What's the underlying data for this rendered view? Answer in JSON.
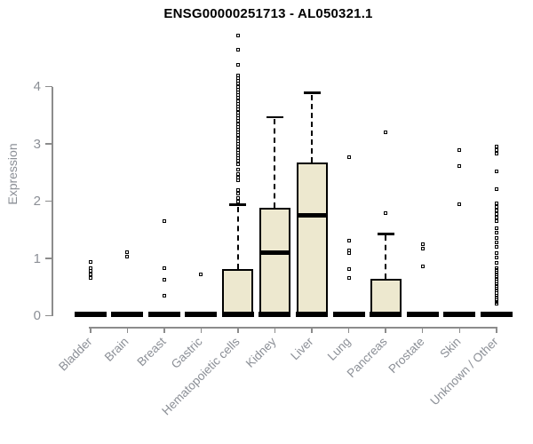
{
  "chart_data": {
    "type": "boxplot",
    "title": "ENSG00000251713 - AL050321.1",
    "ylabel": "Expression",
    "xlabel": "",
    "ylim": [
      0,
      4.95
    ],
    "yticks": [
      0,
      1,
      2,
      3,
      4
    ],
    "grid": false,
    "legend": "none",
    "colors": {
      "box_fill": "#ede8cf",
      "box_line": "#000000",
      "axis": "#8c8c8c",
      "tick_label": "#8b8f96",
      "title": "#000000",
      "background": "#ffffff"
    },
    "categories": [
      "Bladder",
      "Brain",
      "Breast",
      "Gastric",
      "Hematopoietic cells",
      "Kidney",
      "Liver",
      "Lung",
      "Pancreas",
      "Prostate",
      "Skin",
      "Unknown / Other"
    ],
    "series": [
      {
        "category": "Bladder",
        "q1": 0,
        "median": 0,
        "q3": 0,
        "whisker_low": 0,
        "whisker_high": 0,
        "outliers": [
          0.94,
          0.84,
          0.78,
          0.72,
          0.67
        ]
      },
      {
        "category": "Brain",
        "q1": 0,
        "median": 0,
        "q3": 0,
        "whisker_low": 0,
        "whisker_high": 0,
        "outliers": [
          1.11,
          1.04
        ]
      },
      {
        "category": "Breast",
        "q1": 0,
        "median": 0,
        "q3": 0,
        "whisker_low": 0,
        "whisker_high": 0,
        "outliers": [
          1.66,
          0.84,
          0.63,
          0.35
        ]
      },
      {
        "category": "Gastric",
        "q1": 0,
        "median": 0,
        "q3": 0,
        "whisker_low": 0,
        "whisker_high": 0,
        "outliers": [
          0.73
        ]
      },
      {
        "category": "Hematopoietic cells",
        "q1": 0,
        "median": 0.02,
        "q3": 0.81,
        "whisker_low": 0,
        "whisker_high": 1.94,
        "outliers": [
          4.89,
          4.64,
          4.38,
          4.2,
          4.15,
          4.1,
          4.05,
          4.0,
          3.95,
          3.9,
          3.85,
          3.8,
          3.75,
          3.7,
          3.65,
          3.6,
          3.55,
          3.5,
          3.45,
          3.4,
          3.35,
          3.3,
          3.25,
          3.2,
          3.15,
          3.1,
          3.05,
          3.0,
          2.95,
          2.9,
          2.85,
          2.8,
          2.75,
          2.7,
          2.65,
          2.55,
          2.47,
          2.42,
          2.37,
          2.2,
          2.14,
          2.05,
          2.0
        ]
      },
      {
        "category": "Kidney",
        "q1": 0,
        "median": 1.1,
        "q3": 1.89,
        "whisker_low": 0,
        "whisker_high": 3.47,
        "outliers": []
      },
      {
        "category": "Liver",
        "q1": 0,
        "median": 1.76,
        "q3": 2.68,
        "whisker_low": 0,
        "whisker_high": 3.89,
        "outliers": []
      },
      {
        "category": "Lung",
        "q1": 0,
        "median": 0,
        "q3": 0,
        "whisker_low": 0,
        "whisker_high": 0,
        "outliers": [
          2.77,
          1.32,
          1.15,
          1.09,
          0.81,
          0.66
        ]
      },
      {
        "category": "Pancreas",
        "q1": 0,
        "median": 0.02,
        "q3": 0.64,
        "whisker_low": 0,
        "whisker_high": 1.43,
        "outliers": [
          3.2,
          1.79
        ]
      },
      {
        "category": "Prostate",
        "q1": 0,
        "median": 0,
        "q3": 0,
        "whisker_low": 0,
        "whisker_high": 0,
        "outliers": [
          1.25,
          1.17,
          0.86
        ]
      },
      {
        "category": "Skin",
        "q1": 0,
        "median": 0,
        "q3": 0,
        "whisker_low": 0,
        "whisker_high": 0,
        "outliers": [
          2.9,
          2.61,
          1.95
        ]
      },
      {
        "category": "Unknown / Other",
        "q1": 0,
        "median": 0,
        "q3": 0,
        "whisker_low": 0,
        "whisker_high": 0,
        "outliers": [
          2.96,
          2.9,
          2.83,
          2.52,
          2.21,
          1.97,
          1.9,
          1.84,
          1.78,
          1.71,
          1.65,
          1.53,
          1.46,
          1.36,
          1.28,
          1.21,
          1.1,
          1.02,
          0.93,
          0.84,
          0.8,
          0.76,
          0.72,
          0.68,
          0.64,
          0.6,
          0.56,
          0.52,
          0.48,
          0.44,
          0.4,
          0.36,
          0.32,
          0.28,
          0.24,
          0.21
        ]
      }
    ]
  }
}
